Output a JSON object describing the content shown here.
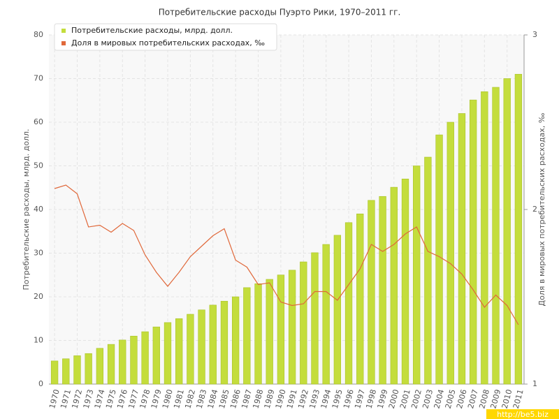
{
  "chart_data": {
    "type": "bar-line",
    "title": "Потребительские расходы Пуэрто Рики, 1970–2011 гг.",
    "y_label": "Потребительские расходы, млрд. долл.",
    "y2_label": "Доля в мировых потребительских расходах, ‰",
    "watermark": "http://be5.biz",
    "categories": [
      "1970",
      "1971",
      "1972",
      "1973",
      "1974",
      "1975",
      "1976",
      "1977",
      "1978",
      "1979",
      "1980",
      "1981",
      "1982",
      "1983",
      "1984",
      "1985",
      "1986",
      "1987",
      "1988",
      "1989",
      "1990",
      "1991",
      "1992",
      "1993",
      "1994",
      "1995",
      "1996",
      "1997",
      "1998",
      "1999",
      "2000",
      "2001",
      "2002",
      "2003",
      "2004",
      "2005",
      "2006",
      "2007",
      "2008",
      "2009",
      "2010",
      "2011"
    ],
    "series": [
      {
        "name": "Потребительские расходы, млрд. долл.",
        "color": "#c4dd3c",
        "kind": "bar",
        "values": [
          5.3,
          5.8,
          6.5,
          7.0,
          8.2,
          9.1,
          10.1,
          11.0,
          12.0,
          13.1,
          14.1,
          15.0,
          16.0,
          17.0,
          18.1,
          19.0,
          20.0,
          22.1,
          23.0,
          24.0,
          25.0,
          26.1,
          28.0,
          30.1,
          32.0,
          34.1,
          37.0,
          39.0,
          42.1,
          43.0,
          45.1,
          47.0,
          50.0,
          52.0,
          57.1,
          60.0,
          62.0,
          65.1,
          67.0,
          68.0,
          70.0,
          71.0
        ]
      },
      {
        "name": "Доля в мировых потребительских расходах, ‰",
        "color": "#e0683a",
        "kind": "line",
        "axis": "y2",
        "values": [
          2.12,
          2.14,
          2.09,
          1.9,
          1.91,
          1.87,
          1.92,
          1.88,
          1.74,
          1.64,
          1.56,
          1.64,
          1.73,
          1.79,
          1.85,
          1.89,
          1.71,
          1.67,
          1.57,
          1.58,
          1.47,
          1.45,
          1.46,
          1.53,
          1.53,
          1.48,
          1.57,
          1.66,
          1.8,
          1.76,
          1.8,
          1.86,
          1.9,
          1.76,
          1.73,
          1.69,
          1.63,
          1.54,
          1.44,
          1.51,
          1.45,
          1.34
        ]
      }
    ],
    "ylim": [
      0,
      80
    ],
    "yticks": [
      0,
      10,
      20,
      30,
      40,
      50,
      60,
      70,
      80
    ],
    "y2lim": [
      1,
      3
    ],
    "y2ticks": [
      1,
      2,
      3
    ],
    "grid": true
  }
}
